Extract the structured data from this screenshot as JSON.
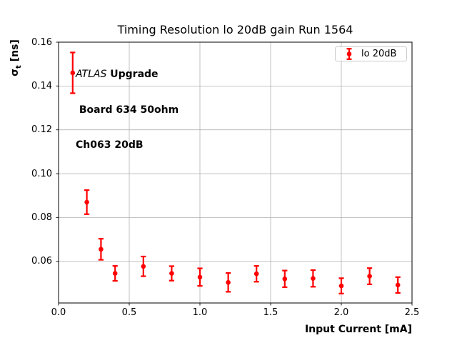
{
  "figure_title": "Timing Resolution lo 20dB gain Run 1564",
  "chart_data": {
    "type": "scatter",
    "title": "Timing Resolution lo 20dB gain Run 1564",
    "xlabel": "Input Current [mA]",
    "ylabel": "σt [ns]",
    "ylabel_parts": {
      "symbol": "σ",
      "subscript": "t",
      "unit": " [ns]"
    },
    "xlim": [
      0.0,
      2.5
    ],
    "ylim": [
      0.041,
      0.16
    ],
    "xticks": [
      0.0,
      0.5,
      1.0,
      1.5,
      2.0,
      2.5
    ],
    "xtick_labels": [
      "0.0",
      "0.5",
      "1.0",
      "1.5",
      "2.0",
      "2.5"
    ],
    "yticks": [
      0.06,
      0.08,
      0.1,
      0.12,
      0.14,
      0.16
    ],
    "ytick_labels": [
      "0.06",
      "0.08",
      "0.10",
      "0.12",
      "0.14",
      "0.16"
    ],
    "grid": true,
    "grid_color": "#b0b0b0",
    "legend_position": "upper right",
    "series": [
      {
        "name": "lo 20dB",
        "color": "#ff0000",
        "x": [
          0.1,
          0.2,
          0.3,
          0.4,
          0.6,
          0.8,
          1.0,
          1.2,
          1.4,
          1.6,
          1.8,
          2.0,
          2.2,
          2.4
        ],
        "y": [
          0.146,
          0.087,
          0.0655,
          0.0545,
          0.0577,
          0.0545,
          0.0528,
          0.0504,
          0.0543,
          0.052,
          0.0522,
          0.0488,
          0.0532,
          0.0492
        ],
        "yerr": [
          0.0093,
          0.0055,
          0.0048,
          0.0034,
          0.0045,
          0.0033,
          0.004,
          0.0043,
          0.0036,
          0.0038,
          0.0038,
          0.0035,
          0.0037,
          0.0036
        ]
      }
    ],
    "annotation": {
      "line1_italic": "ATLAS",
      "line1_bold": " Upgrade",
      "line2": " Board 634 50ohm",
      "line3": "Ch063 20dB"
    },
    "legend": {
      "label": "lo 20dB"
    }
  }
}
